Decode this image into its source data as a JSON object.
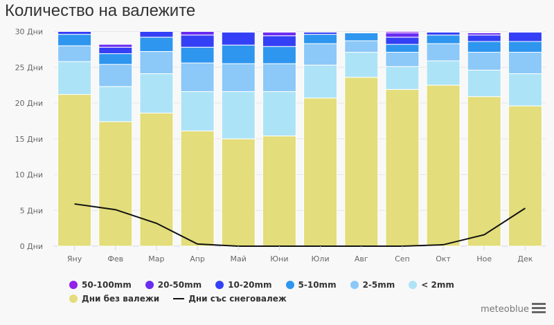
{
  "title": "Количество на валежите",
  "brand": "meteoblue",
  "menu_icon": "hamburger-menu-icon",
  "chart_data": {
    "type": "bar",
    "stacked": true,
    "title": "Количество на валежите",
    "ylim": [
      0,
      30
    ],
    "yticks": [
      "0 Дни",
      "5 Дни",
      "10 Дни",
      "15 Дни",
      "20 Дни",
      "25 Дни",
      "30 Дни"
    ],
    "ytick_values": [
      0,
      5,
      10,
      15,
      20,
      25,
      30
    ],
    "categories": [
      "Яну",
      "Фев",
      "Мар",
      "Апр",
      "Май",
      "Юни",
      "Юли",
      "Авг",
      "Сеп",
      "Окт",
      "Ное",
      "Дек"
    ],
    "series": [
      {
        "name": "Дни без валежи",
        "color": "#e3dd7b",
        "values": [
          21.2,
          17.4,
          18.6,
          16.1,
          15.0,
          15.4,
          20.7,
          23.6,
          21.9,
          22.5,
          20.9,
          19.6
        ]
      },
      {
        "name": "< 2mm",
        "color": "#ade3f7",
        "values": [
          4.6,
          4.9,
          5.5,
          5.5,
          6.6,
          6.2,
          4.6,
          3.5,
          3.2,
          3.4,
          3.7,
          4.5
        ]
      },
      {
        "name": "2-5mm",
        "color": "#8cc8f8",
        "values": [
          2.2,
          3.1,
          3.1,
          4.0,
          3.9,
          3.9,
          3.0,
          1.6,
          2.0,
          2.4,
          2.5,
          3.0
        ]
      },
      {
        "name": "5-10mm",
        "color": "#2e96ef",
        "values": [
          1.6,
          1.5,
          2.0,
          2.2,
          2.6,
          2.4,
          1.3,
          1.1,
          1.1,
          1.2,
          1.5,
          1.5
        ]
      },
      {
        "name": "10-20mm",
        "color": "#3440f5",
        "values": [
          0.4,
          0.9,
          0.8,
          1.7,
          1.8,
          1.5,
          0.3,
          0,
          1.0,
          0.4,
          0.9,
          1.3
        ]
      },
      {
        "name": "20-50mm",
        "color": "#6a2cf0",
        "values": [
          0,
          0.4,
          0,
          0.5,
          0.1,
          0.5,
          0,
          0,
          0.6,
          0.1,
          0.3,
          0.1
        ]
      },
      {
        "name": "50-100mm",
        "color": "#9321e8",
        "values": [
          0,
          0,
          0,
          0,
          0,
          0.1,
          0,
          0,
          0.2,
          0,
          0,
          0
        ]
      }
    ],
    "line_series": {
      "name": "Дни със снеговалеж",
      "color": "#111111",
      "values": [
        5.9,
        5.1,
        3.2,
        0.3,
        0.0,
        0.0,
        0.0,
        0.0,
        0.0,
        0.2,
        1.6,
        5.3
      ]
    },
    "legend": {
      "placement": "bottom-left",
      "items": [
        {
          "label": "50-100mm",
          "color": "#9321e8",
          "kind": "dot"
        },
        {
          "label": "20-50mm",
          "color": "#6a2cf0",
          "kind": "dot"
        },
        {
          "label": "10-20mm",
          "color": "#3440f5",
          "kind": "dot"
        },
        {
          "label": "5-10mm",
          "color": "#2e96ef",
          "kind": "dot"
        },
        {
          "label": "2-5mm",
          "color": "#8cc8f8",
          "kind": "dot"
        },
        {
          "label": "< 2mm",
          "color": "#ade3f7",
          "kind": "dot"
        },
        {
          "label": "Дни без валежи",
          "color": "#e3dd7b",
          "kind": "dot"
        },
        {
          "label": "Дни със снеговалеж",
          "color": "#111111",
          "kind": "line"
        }
      ]
    },
    "grid": true
  }
}
